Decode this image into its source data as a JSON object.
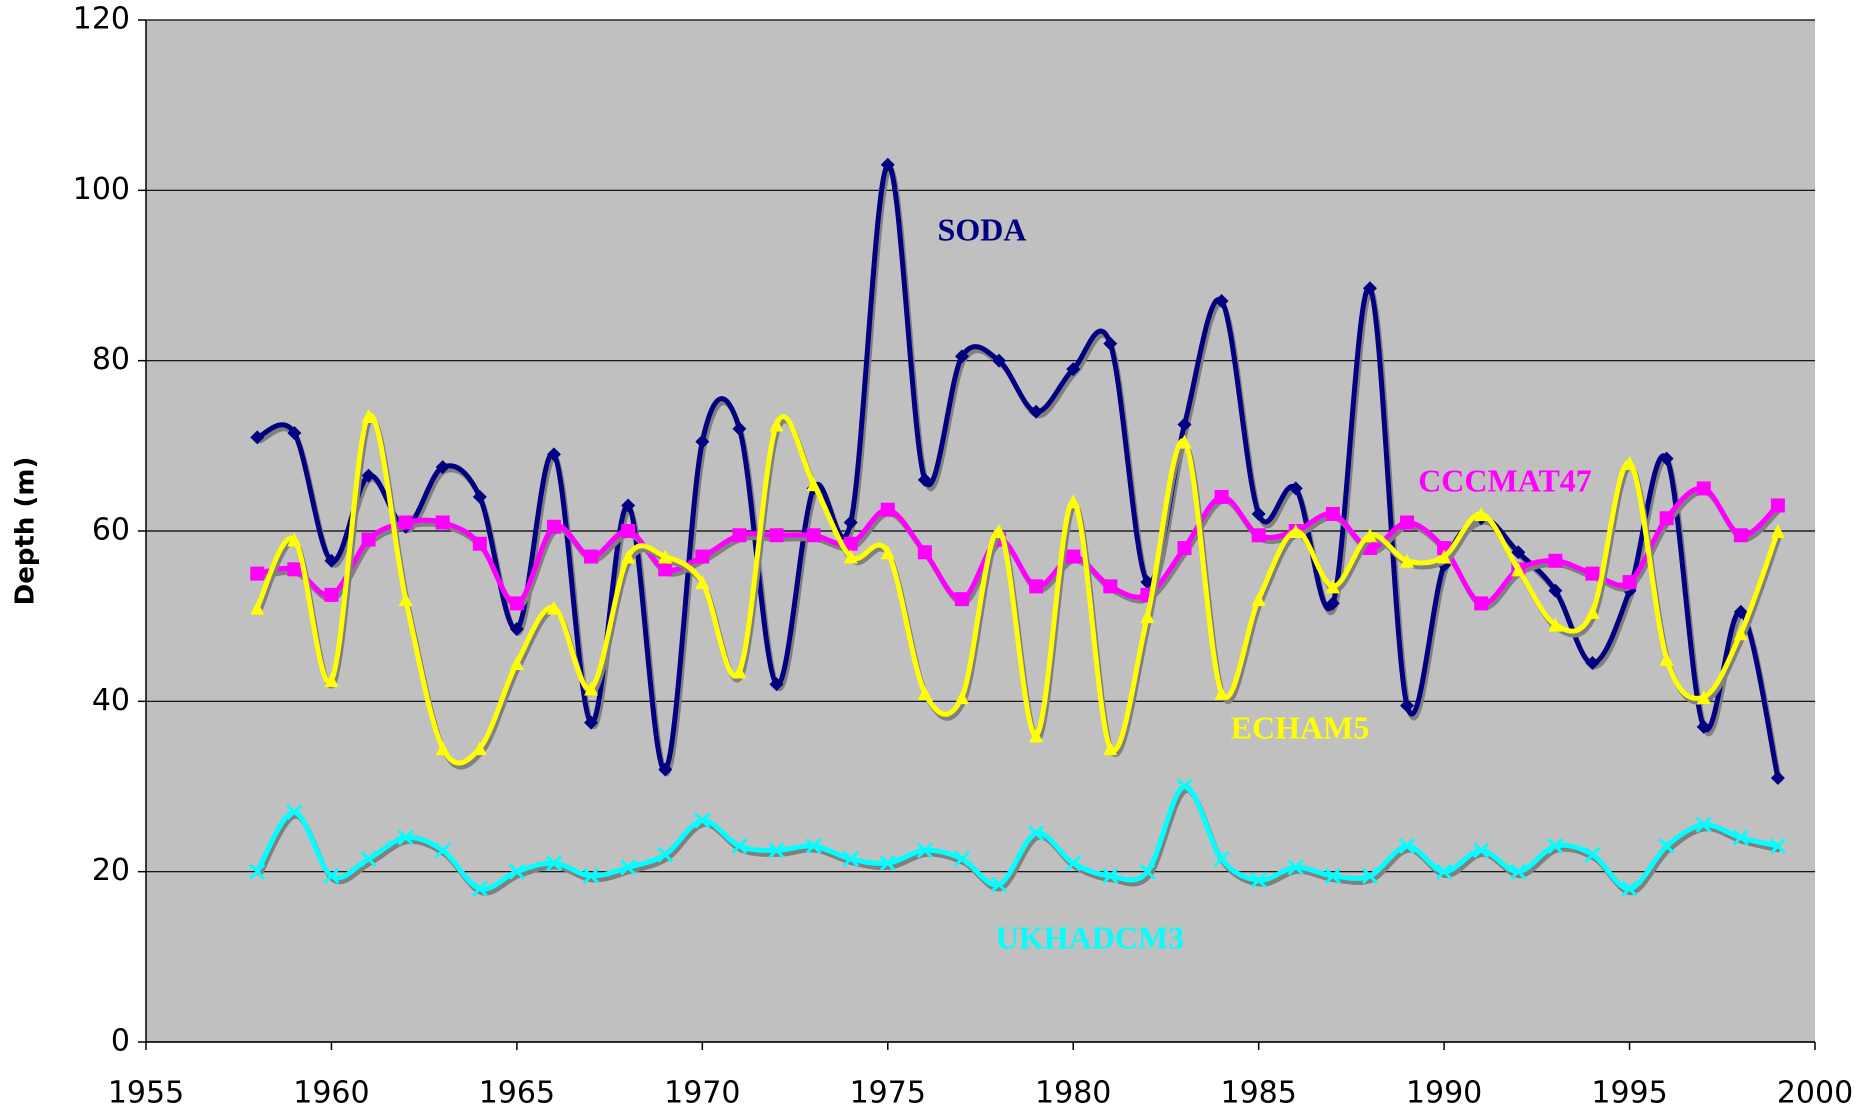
{
  "chart_data": {
    "type": "line",
    "y_label": "Depth (m)",
    "x": [
      1958,
      1959,
      1960,
      1961,
      1962,
      1963,
      1964,
      1965,
      1966,
      1967,
      1968,
      1969,
      1970,
      1971,
      1972,
      1973,
      1974,
      1975,
      1976,
      1977,
      1978,
      1979,
      1980,
      1981,
      1982,
      1983,
      1984,
      1985,
      1986,
      1987,
      1988,
      1989,
      1990,
      1991,
      1992,
      1993,
      1994,
      1995,
      1996,
      1997,
      1998,
      1999
    ],
    "series": [
      {
        "name": "SODA",
        "color": "#000080",
        "marker": "diamond",
        "values": [
          71,
          71.5,
          56.5,
          66.5,
          60.5,
          67.5,
          64,
          48.5,
          69,
          37.5,
          63,
          32,
          70.5,
          72,
          42,
          65,
          61,
          103,
          66,
          80.5,
          80,
          74,
          79,
          82,
          54,
          72.5,
          87,
          62,
          65,
          51.5,
          88.5,
          39.5,
          56,
          61.5,
          57.5,
          53,
          44.5,
          53,
          68.5,
          37,
          50.5,
          31
        ]
      },
      {
        "name": "CCCMAT47",
        "color": "#ff00ff",
        "marker": "square",
        "values": [
          55,
          55.5,
          52.5,
          59,
          61,
          61,
          58.5,
          51.5,
          60.5,
          57,
          60,
          55.5,
          57,
          59.5,
          59.5,
          59.5,
          58.5,
          62.5,
          57.5,
          52,
          59,
          53.5,
          57,
          53.5,
          52.5,
          58,
          64,
          59.5,
          60,
          62,
          58,
          61,
          58,
          51.5,
          55.5,
          56.5,
          55,
          54,
          61.5,
          65,
          59.5,
          63
        ]
      },
      {
        "name": "ECHAM5",
        "color": "#ffff00",
        "marker": "triangle",
        "values": [
          51,
          59,
          42.5,
          73.5,
          52,
          34.5,
          34.5,
          44.5,
          51,
          41.5,
          57,
          57,
          54,
          43.5,
          72.5,
          65.5,
          57,
          57.5,
          41,
          40.5,
          60,
          36,
          63.5,
          34.5,
          50,
          70.5,
          41,
          52,
          60,
          53.5,
          59.5,
          56.5,
          57,
          62,
          55.5,
          49,
          50.5,
          68,
          45,
          40.5,
          48,
          60
        ]
      },
      {
        "name": "UKHADCM3",
        "color": "#00ffff",
        "marker": "x",
        "values": [
          20,
          27,
          19.5,
          21.5,
          24,
          22.5,
          18,
          20,
          21,
          19.5,
          20.5,
          22,
          26,
          23,
          22.5,
          23,
          21.5,
          21,
          22.5,
          21.5,
          18.5,
          24.5,
          21,
          19.5,
          20,
          30,
          21.5,
          19,
          20.5,
          19.5,
          19.5,
          23,
          20,
          22.5,
          20,
          23,
          22,
          18,
          23,
          25.5,
          24,
          23
        ]
      }
    ],
    "xlim": [
      1955,
      2000
    ],
    "xticks": [
      1955,
      1960,
      1965,
      1970,
      1975,
      1980,
      1985,
      1990,
      1995,
      2000
    ],
    "ylim": [
      0,
      120
    ],
    "yticks": [
      0,
      20,
      40,
      60,
      80,
      100,
      120
    ],
    "grid": true
  }
}
